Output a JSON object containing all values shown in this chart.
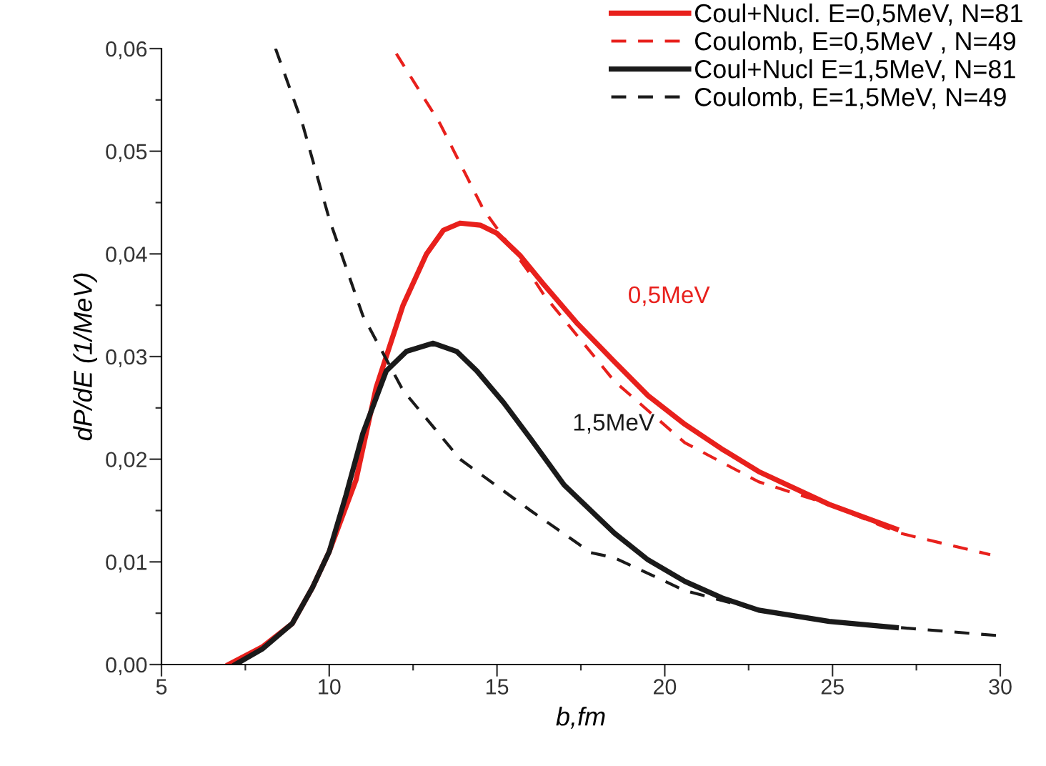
{
  "chart_data": {
    "type": "line",
    "xlabel": "b,fm",
    "ylabel": "dP/dE (1/MeV)",
    "xlim": [
      5,
      30
    ],
    "ylim": [
      0,
      0.06
    ],
    "xticks": [
      5,
      {
        "value": 7.5,
        "label": null
      },
      10,
      {
        "value": 12.5,
        "label": null
      },
      15,
      {
        "value": 17.5,
        "label": null
      },
      20,
      {
        "value": 22.5,
        "label": null
      },
      25,
      {
        "value": 27.5,
        "label": null
      },
      30
    ],
    "yticks": [
      {
        "value": 0,
        "label": "0,00"
      },
      {
        "value": 0.005,
        "label": null
      },
      {
        "value": 0.01,
        "label": "0,01"
      },
      {
        "value": 0.015,
        "label": null
      },
      {
        "value": 0.02,
        "label": "0,02"
      },
      {
        "value": 0.025,
        "label": null
      },
      {
        "value": 0.03,
        "label": "0,03"
      },
      {
        "value": 0.035,
        "label": null
      },
      {
        "value": 0.04,
        "label": "0,04"
      },
      {
        "value": 0.045,
        "label": null
      },
      {
        "value": 0.05,
        "label": "0,05"
      },
      {
        "value": 0.055,
        "label": null
      },
      {
        "value": 0.06,
        "label": "0,06"
      }
    ],
    "grid": false,
    "legend": "top right",
    "series": [
      {
        "name": "Coul+Nucl. E=0,5MeV, N=81",
        "color": "#e8201c",
        "line_style": "solid",
        "x": [
          7.0,
          8.0,
          8.9,
          9.5,
          10.0,
          10.4,
          10.8,
          11.4,
          12.2,
          12.9,
          13.4,
          13.9,
          14.5,
          15.0,
          15.7,
          16.4,
          17.4,
          18.5,
          19.5,
          20.6,
          21.7,
          22.8,
          24.9,
          26.9
        ],
        "values": [
          0.0,
          0.0017,
          0.004,
          0.0075,
          0.011,
          0.0145,
          0.018,
          0.027,
          0.035,
          0.04,
          0.0423,
          0.043,
          0.0428,
          0.042,
          0.0398,
          0.037,
          0.0332,
          0.0295,
          0.0262,
          0.0234,
          0.021,
          0.0188,
          0.0156,
          0.0132
        ]
      },
      {
        "name": "Coulomb, E=0,5MeV , N=49",
        "color": "#e8201c",
        "line_style": "dashed",
        "x": [
          12.0,
          13.3,
          14.6,
          16.0,
          16.4,
          18.5,
          20.6,
          22.8,
          24.9,
          27.0,
          29.7
        ],
        "values": [
          0.0595,
          0.0527,
          0.0443,
          0.038,
          0.036,
          0.0276,
          0.0216,
          0.0178,
          0.0156,
          0.0128,
          0.0107
        ]
      },
      {
        "name": "Coul+Nucl E=1,5MeV, N=81",
        "color": "#1a1a1a",
        "line_style": "solid",
        "x": [
          7.2,
          8.0,
          8.9,
          9.5,
          10.0,
          10.5,
          11.0,
          11.7,
          12.3,
          13.1,
          13.8,
          14.4,
          15.2,
          16.0,
          17.0,
          18.5,
          19.5,
          20.6,
          21.7,
          22.8,
          24.9,
          26.9
        ],
        "values": [
          0.0,
          0.0015,
          0.004,
          0.0075,
          0.011,
          0.0165,
          0.0225,
          0.0286,
          0.0305,
          0.0313,
          0.0305,
          0.0286,
          0.0255,
          0.022,
          0.0175,
          0.0128,
          0.0102,
          0.0081,
          0.0065,
          0.0053,
          0.0042,
          0.0036
        ]
      },
      {
        "name": "Coulomb, E=1,5MeV, N=49",
        "color": "#1a1a1a",
        "line_style": "dashed",
        "x": [
          8.4,
          9.2,
          10.0,
          11.0,
          12.2,
          13.9,
          16.0,
          17.8,
          18.5,
          20.6,
          22.8,
          24.9,
          27.0,
          30.0
        ],
        "values": [
          0.06,
          0.0527,
          0.0434,
          0.034,
          0.0267,
          0.02,
          0.015,
          0.0109,
          0.0104,
          0.0072,
          0.0053,
          0.0042,
          0.0036,
          0.0028
        ]
      }
    ],
    "annotations": [
      "0,5MeV",
      "1,5MeV"
    ]
  }
}
